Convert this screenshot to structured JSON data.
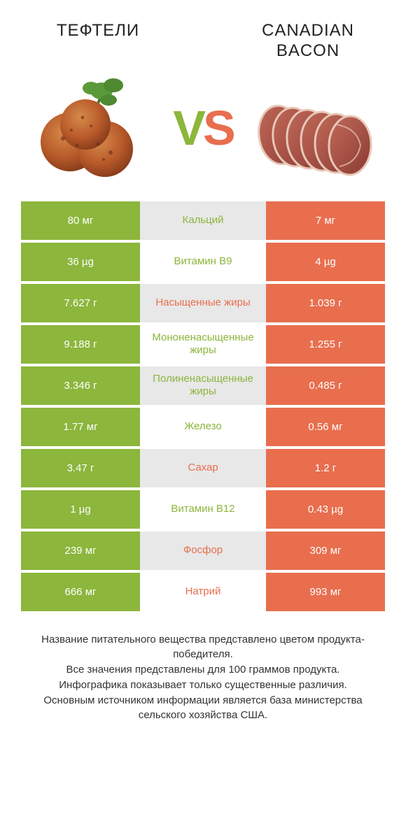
{
  "colors": {
    "green": "#8cb63c",
    "orange": "#e86e4e",
    "grey": "#e8e8e8",
    "text_dark": "#222222"
  },
  "titles": {
    "left": "ТЕФТЕЛИ",
    "right": "CANADIAN\nBACON"
  },
  "vs": {
    "v": "V",
    "s": "S"
  },
  "rows": [
    {
      "left": "80 мг",
      "label": "Кальций",
      "right": "7 мг",
      "winner": "left"
    },
    {
      "left": "36 µg",
      "label": "Витамин B9",
      "right": "4 µg",
      "winner": "left"
    },
    {
      "left": "7.627 г",
      "label": "Насыщенные жиры",
      "right": "1.039 г",
      "winner": "right"
    },
    {
      "left": "9.188 г",
      "label": "Мононенасыщенные жиры",
      "right": "1.255 г",
      "winner": "left"
    },
    {
      "left": "3.346 г",
      "label": "Полиненасыщенные жиры",
      "right": "0.485 г",
      "winner": "left"
    },
    {
      "left": "1.77 мг",
      "label": "Железо",
      "right": "0.56 мг",
      "winner": "left"
    },
    {
      "left": "3.47 г",
      "label": "Сахар",
      "right": "1.2 г",
      "winner": "right"
    },
    {
      "left": "1 µg",
      "label": "Витамин B12",
      "right": "0.43 µg",
      "winner": "left"
    },
    {
      "left": "239 мг",
      "label": "Фосфор",
      "right": "309 мг",
      "winner": "right"
    },
    {
      "left": "666 мг",
      "label": "Натрий",
      "right": "993 мг",
      "winner": "right"
    }
  ],
  "notes": [
    "Название питательного вещества представлено цветом продукта-победителя.",
    "Все значения представлены для 100 граммов продукта.",
    "Инфографика показывает только существенные различия.",
    "Основным источником информации является база министерства сельского хозяйства США."
  ]
}
